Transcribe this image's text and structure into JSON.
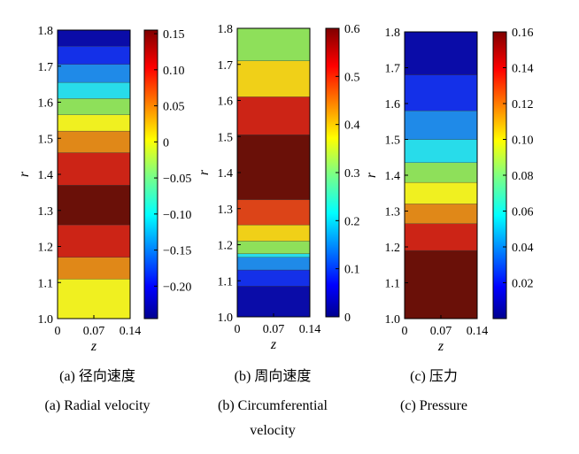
{
  "chart_data": [
    {
      "type": "heatmap",
      "xlabel": "z",
      "ylabel": "r",
      "x_ticks": [
        "0",
        "0.07",
        "0.14"
      ],
      "y_ticks": [
        "1.0",
        "1.1",
        "1.2",
        "1.3",
        "1.4",
        "1.5",
        "1.6",
        "1.7",
        "1.8"
      ],
      "xlim": [
        0,
        0.14
      ],
      "ylim": [
        1.0,
        1.8
      ],
      "bands": [
        {
          "r_from": 1.0,
          "r_to": 1.11,
          "color": "#f0f020"
        },
        {
          "r_from": 1.11,
          "r_to": 1.17,
          "color": "#e08818"
        },
        {
          "r_from": 1.17,
          "r_to": 1.26,
          "color": "#cc2416"
        },
        {
          "r_from": 1.26,
          "r_to": 1.37,
          "color": "#6a1008"
        },
        {
          "r_from": 1.37,
          "r_to": 1.46,
          "color": "#cc2416"
        },
        {
          "r_from": 1.46,
          "r_to": 1.52,
          "color": "#e08818"
        },
        {
          "r_from": 1.52,
          "r_to": 1.565,
          "color": "#f0f020"
        },
        {
          "r_from": 1.565,
          "r_to": 1.61,
          "color": "#8ee05a"
        },
        {
          "r_from": 1.61,
          "r_to": 1.655,
          "color": "#28dcea"
        },
        {
          "r_from": 1.655,
          "r_to": 1.705,
          "color": "#1f8ae8"
        },
        {
          "r_from": 1.705,
          "r_to": 1.755,
          "color": "#1430e8"
        },
        {
          "r_from": 1.755,
          "r_to": 1.8,
          "color": "#0a0ca8"
        }
      ],
      "colorbar": {
        "ticks": [
          "0.15",
          "0.10",
          "0.05",
          "0",
          "−0.05",
          "−0.10",
          "−0.15",
          "−0.20"
        ],
        "tick_values": [
          0.15,
          0.1,
          0.05,
          0,
          -0.05,
          -0.1,
          -0.15,
          -0.2
        ],
        "range": [
          -0.245,
          0.155
        ]
      },
      "caption_cn": "(a) 径向速度",
      "caption_en": "(a) Radial velocity"
    },
    {
      "type": "heatmap",
      "xlabel": "z",
      "ylabel": "r",
      "x_ticks": [
        "0",
        "0.07",
        "0.14"
      ],
      "y_ticks": [
        "1.0",
        "1.1",
        "1.2",
        "1.3",
        "1.4",
        "1.5",
        "1.6",
        "1.7",
        "1.8"
      ],
      "xlim": [
        0,
        0.14
      ],
      "ylim": [
        1.0,
        1.8
      ],
      "bands": [
        {
          "r_from": 1.0,
          "r_to": 1.085,
          "color": "#0a0ca8"
        },
        {
          "r_from": 1.085,
          "r_to": 1.13,
          "color": "#1430e8"
        },
        {
          "r_from": 1.13,
          "r_to": 1.165,
          "color": "#1f8ae8"
        },
        {
          "r_from": 1.165,
          "r_to": 1.175,
          "color": "#28dcea"
        },
        {
          "r_from": 1.175,
          "r_to": 1.21,
          "color": "#8ee05a"
        },
        {
          "r_from": 1.21,
          "r_to": 1.255,
          "color": "#f0d018"
        },
        {
          "r_from": 1.255,
          "r_to": 1.325,
          "color": "#dc4418"
        },
        {
          "r_from": 1.325,
          "r_to": 1.505,
          "color": "#6a1008"
        },
        {
          "r_from": 1.505,
          "r_to": 1.61,
          "color": "#cc2416"
        },
        {
          "r_from": 1.61,
          "r_to": 1.71,
          "color": "#f0d018"
        },
        {
          "r_from": 1.71,
          "r_to": 1.8,
          "color": "#8ee05a"
        }
      ],
      "colorbar": {
        "ticks": [
          "0.6",
          "0.5",
          "0.4",
          "0.3",
          "0.2",
          "0.1",
          "0"
        ],
        "tick_values": [
          0.6,
          0.5,
          0.4,
          0.3,
          0.2,
          0.1,
          0
        ],
        "range": [
          0,
          0.6
        ]
      },
      "caption_cn": "(b) 周向速度",
      "caption_en": "(b) Circumferential",
      "caption_en2": "velocity"
    },
    {
      "type": "heatmap",
      "xlabel": "z",
      "ylabel": "r",
      "x_ticks": [
        "0",
        "0.07",
        "0.14"
      ],
      "y_ticks": [
        "1.0",
        "1.1",
        "1.2",
        "1.3",
        "1.4",
        "1.5",
        "1.6",
        "1.7",
        "1.8"
      ],
      "xlim": [
        0,
        0.14
      ],
      "ylim": [
        1.0,
        1.8
      ],
      "bands": [
        {
          "r_from": 1.0,
          "r_to": 1.19,
          "color": "#6a1008"
        },
        {
          "r_from": 1.19,
          "r_to": 1.265,
          "color": "#cc2416"
        },
        {
          "r_from": 1.265,
          "r_to": 1.32,
          "color": "#e08818"
        },
        {
          "r_from": 1.32,
          "r_to": 1.38,
          "color": "#f0f020"
        },
        {
          "r_from": 1.38,
          "r_to": 1.435,
          "color": "#8ee05a"
        },
        {
          "r_from": 1.435,
          "r_to": 1.5,
          "color": "#28dcea"
        },
        {
          "r_from": 1.5,
          "r_to": 1.58,
          "color": "#1f8ae8"
        },
        {
          "r_from": 1.58,
          "r_to": 1.68,
          "color": "#1430e8"
        },
        {
          "r_from": 1.68,
          "r_to": 1.8,
          "color": "#0a0ca8"
        }
      ],
      "colorbar": {
        "ticks": [
          "0.16",
          "0.14",
          "0.12",
          "0.10",
          "0.08",
          "0.06",
          "0.04",
          "0.02"
        ],
        "tick_values": [
          0.16,
          0.14,
          0.12,
          0.1,
          0.08,
          0.06,
          0.04,
          0.02
        ],
        "range": [
          0,
          0.16
        ]
      },
      "caption_cn": "(c) 压力",
      "caption_en": "(c) Pressure"
    }
  ]
}
